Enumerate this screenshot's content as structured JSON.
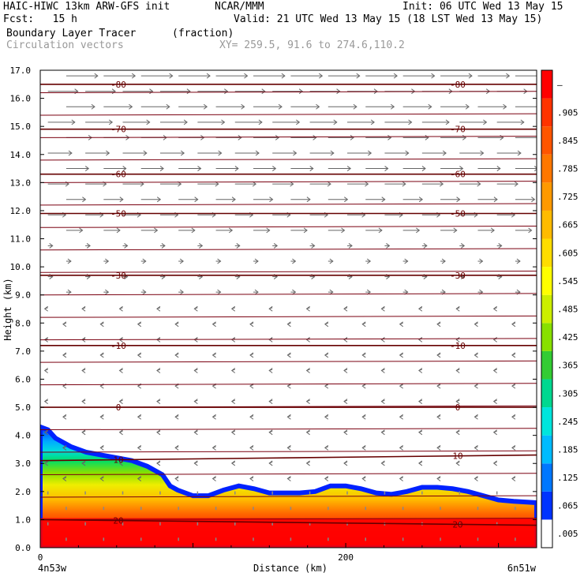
{
  "header": {
    "line1_left": "HAIC-HIWC 13km ARW-GFS init",
    "line1_center": "NCAR/MMM",
    "line1_right": "Init: 06 UTC Wed 13 May 15",
    "line2_left": "Fcst:   15 h",
    "line2_right": "Valid: 21 UTC Wed 13 May 15 (18 LST Wed 13 May 15)",
    "field_name": "Boundary Layer Tracer",
    "field_units": "(fraction)",
    "overlay_name": "Circulation vectors",
    "xy_text": "XY= 259.5, 91.6 to 274.6,110.2"
  },
  "chart_data": {
    "type": "heatmap",
    "xlabel": "Distance (km)",
    "ylabel": "Height (km)",
    "xlim": [
      0,
      325
    ],
    "ylim": [
      0,
      17
    ],
    "x_ticks": [
      0,
      200
    ],
    "x_end_labels": [
      "4n53w",
      "6n51w"
    ],
    "y_ticks": [
      "0.0",
      "1.0",
      "2.0",
      "3.0",
      "4.0",
      "5.0",
      "6.0",
      "7.0",
      "8.0",
      "9.0",
      "10.0",
      "11.0",
      "12.0",
      "13.0",
      "14.0",
      "15.0",
      "16.0",
      "17.0"
    ],
    "colorbar": {
      "labels": [
        ".005",
        ".065",
        ".125",
        ".185",
        ".245",
        ".305",
        ".365",
        ".425",
        ".485",
        ".545",
        ".605",
        ".665",
        ".725",
        ".785",
        ".845",
        ".905",
        "–"
      ],
      "colors": [
        "#ffffff",
        "#0033ff",
        "#0077ff",
        "#00bbff",
        "#00e5dd",
        "#00d890",
        "#33cc33",
        "#88e000",
        "#ccee00",
        "#ffff00",
        "#ffdd00",
        "#ffbb00",
        "#ff9900",
        "#ff7700",
        "#ff5500",
        "#ff3300",
        "#ff0000"
      ]
    },
    "contour_lines": [
      {
        "label": "-80",
        "height": [
          16.5,
          16.5
        ]
      },
      {
        "label": "-70",
        "height": [
          14.9,
          14.9
        ]
      },
      {
        "label": "-60",
        "height": [
          13.3,
          13.3
        ]
      },
      {
        "label": "-50",
        "height": [
          11.9,
          11.9
        ]
      },
      {
        "label": "-30",
        "height": [
          9.7,
          9.7
        ]
      },
      {
        "label": "-10",
        "height": [
          7.2,
          7.2
        ]
      },
      {
        "label": "0",
        "height": [
          5.0,
          5.0
        ]
      },
      {
        "label": "10",
        "height": [
          3.1,
          3.3
        ]
      },
      {
        "label": "20",
        "height": [
          1.0,
          0.8
        ]
      }
    ],
    "tracer_top_km": [
      [
        0,
        4.3
      ],
      [
        5,
        4.2
      ],
      [
        10,
        3.9
      ],
      [
        20,
        3.6
      ],
      [
        30,
        3.4
      ],
      [
        40,
        3.3
      ],
      [
        50,
        3.2
      ],
      [
        60,
        3.1
      ],
      [
        70,
        2.9
      ],
      [
        80,
        2.6
      ],
      [
        85,
        2.2
      ],
      [
        90,
        2.05
      ],
      [
        100,
        1.85
      ],
      [
        110,
        1.85
      ],
      [
        120,
        2.05
      ],
      [
        130,
        2.2
      ],
      [
        140,
        2.1
      ],
      [
        150,
        1.95
      ],
      [
        160,
        1.95
      ],
      [
        170,
        1.95
      ],
      [
        180,
        2.0
      ],
      [
        190,
        2.2
      ],
      [
        200,
        2.2
      ],
      [
        210,
        2.1
      ],
      [
        220,
        1.95
      ],
      [
        230,
        1.9
      ],
      [
        240,
        2.0
      ],
      [
        250,
        2.15
      ],
      [
        260,
        2.15
      ],
      [
        270,
        2.1
      ],
      [
        280,
        2.0
      ],
      [
        290,
        1.85
      ],
      [
        300,
        1.7
      ],
      [
        310,
        1.65
      ],
      [
        325,
        1.6
      ]
    ]
  }
}
